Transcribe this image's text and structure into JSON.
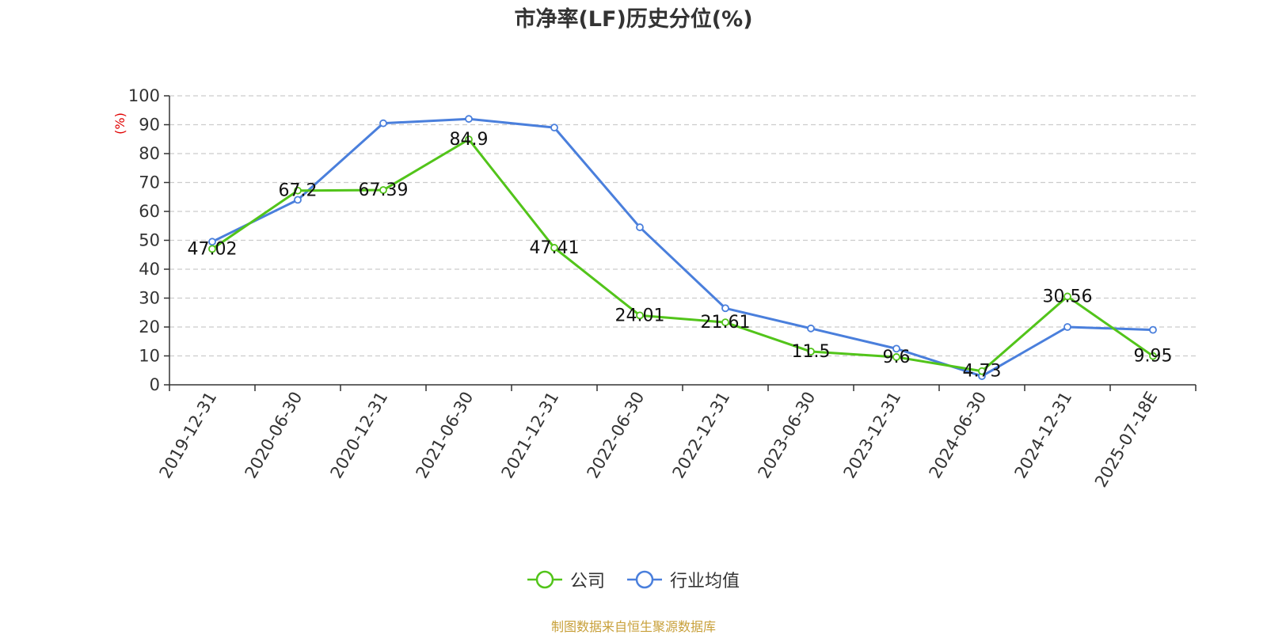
{
  "chart_data": {
    "type": "line",
    "title": "市净率(LF)历史分位(%)",
    "ylabel": "(%)",
    "xlabel": "",
    "ylim": [
      0,
      100
    ],
    "yticks": [
      0,
      10,
      20,
      30,
      40,
      50,
      60,
      70,
      80,
      90,
      100
    ],
    "grid": true,
    "legend_position": "bottom",
    "categories": [
      "2019-12-31",
      "2020-06-30",
      "2020-12-31",
      "2021-06-30",
      "2021-12-31",
      "2022-06-30",
      "2022-12-31",
      "2023-06-30",
      "2023-12-31",
      "2024-06-30",
      "2024-12-31",
      "2025-07-18E"
    ],
    "series": [
      {
        "name": "公司",
        "color": "#52c41a",
        "values": [
          47.02,
          67.2,
          67.39,
          84.9,
          47.41,
          24.01,
          21.61,
          11.5,
          9.6,
          4.73,
          30.56,
          9.95
        ],
        "labels": [
          "47.02",
          "67.2",
          "67.39",
          "84.9",
          "47.41",
          "24.01",
          "21.61",
          "11.5",
          "9.6",
          "4.73",
          "30.56",
          "9.95"
        ]
      },
      {
        "name": "行业均值",
        "color": "#4a7fdc",
        "values": [
          49.5,
          64,
          90.5,
          92,
          89,
          54.5,
          26.5,
          19.5,
          12.5,
          3,
          20,
          19
        ]
      }
    ],
    "source": "制图数据来自恒生聚源数据库"
  }
}
